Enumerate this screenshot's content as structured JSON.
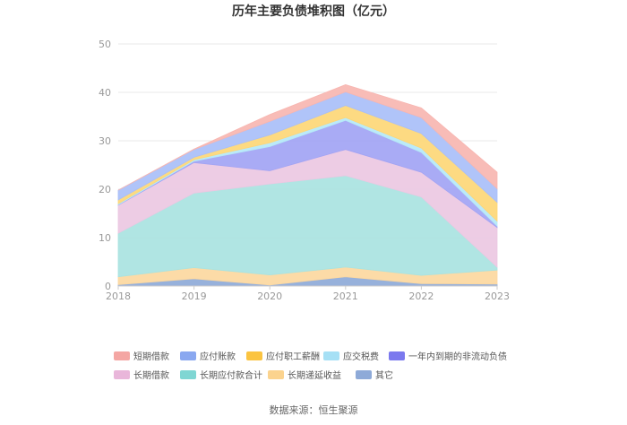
{
  "chart_data": {
    "type": "area",
    "stacked": true,
    "title": "历年主要负债堆积图（亿元）",
    "x": [
      "2018",
      "2019",
      "2020",
      "2021",
      "2022",
      "2023"
    ],
    "ylim": [
      0,
      50
    ],
    "yticks": [
      "0",
      "10",
      "20",
      "30",
      "40",
      "50"
    ],
    "grid": true,
    "legend_position": "bottom",
    "series": [
      {
        "name": "其它",
        "color": "#8eaad8",
        "values": [
          0.3,
          1.5,
          0.2,
          1.9,
          0.5,
          0.4
        ]
      },
      {
        "name": "长期递延收益",
        "color": "#fcd8a0",
        "values": [
          1.6,
          2.3,
          2.1,
          2.0,
          1.7,
          2.9
        ]
      },
      {
        "name": "长期应付款合计",
        "color": "#a9e3e1",
        "values": [
          9.0,
          15.4,
          18.8,
          18.9,
          16.2,
          0.6
        ]
      },
      {
        "name": "长期借款",
        "color": "#ecc8e2",
        "values": [
          5.8,
          6.3,
          2.7,
          5.4,
          5.1,
          8.2
        ]
      },
      {
        "name": "一年内到期的非流动负债",
        "color": "#a2a4f4",
        "values": [
          0.1,
          0.3,
          5.0,
          6.0,
          4.1,
          0.3
        ]
      },
      {
        "name": "应交税费",
        "color": "#b5e8f8",
        "values": [
          0.2,
          0.3,
          0.8,
          0.6,
          0.9,
          1.0
        ]
      },
      {
        "name": "应付职工薪酬",
        "color": "#fdd777",
        "values": [
          0.8,
          0.5,
          1.6,
          2.5,
          3.0,
          3.9
        ]
      },
      {
        "name": "应付账款",
        "color": "#a9bff8",
        "values": [
          2.0,
          1.6,
          2.8,
          2.8,
          3.3,
          2.8
        ]
      },
      {
        "name": "短期借款",
        "color": "#f7b6b1",
        "values": [
          0.0,
          0.1,
          1.4,
          1.5,
          2.0,
          3.4
        ]
      }
    ],
    "legend": [
      {
        "name": "短期借款",
        "color": "#f4a6a3"
      },
      {
        "name": "应付账款",
        "color": "#8aa8f0"
      },
      {
        "name": "应付职工薪酬",
        "color": "#fbc441"
      },
      {
        "name": "应交税费",
        "color": "#a6e0f5"
      },
      {
        "name": "一年内到期的非流动负债",
        "color": "#7b79ee"
      },
      {
        "name": "长期借款",
        "color": "#e9b6da"
      },
      {
        "name": "长期应付款合计",
        "color": "#7fd6d3"
      },
      {
        "name": "长期递延收益",
        "color": "#fbd38e"
      },
      {
        "name": "其它",
        "color": "#8eaad8"
      }
    ],
    "source": "数据来源：恒生聚源"
  }
}
